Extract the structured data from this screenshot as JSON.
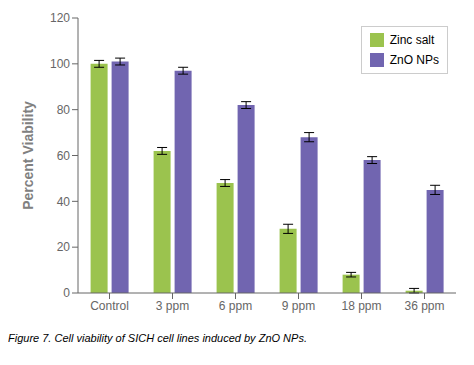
{
  "chart_data": {
    "type": "bar",
    "ylabel": "Percent Viability",
    "categories": [
      "Control",
      "3 ppm",
      "6 ppm",
      "9 ppm",
      "18 ppm",
      "36 ppm"
    ],
    "series": [
      {
        "name": "Zinc salt",
        "color": "#9bc34e",
        "values": [
          100,
          62,
          48,
          28,
          8,
          1
        ],
        "errors": [
          1.5,
          1.5,
          1.5,
          2.0,
          1.0,
          1.0
        ]
      },
      {
        "name": "ZnO NPs",
        "color": "#7165b0",
        "values": [
          101,
          97,
          82,
          68,
          58,
          45
        ],
        "errors": [
          1.5,
          1.5,
          1.5,
          2.0,
          1.5,
          2.0
        ]
      }
    ],
    "ylim": [
      0,
      120
    ],
    "yticks": [
      0,
      20,
      40,
      60,
      80,
      100,
      120
    ],
    "grid": false,
    "legend": "upper right",
    "annotations": [
      "Figure 7. Cell viability of SICH cell lines induced by ZnO NPs."
    ]
  }
}
